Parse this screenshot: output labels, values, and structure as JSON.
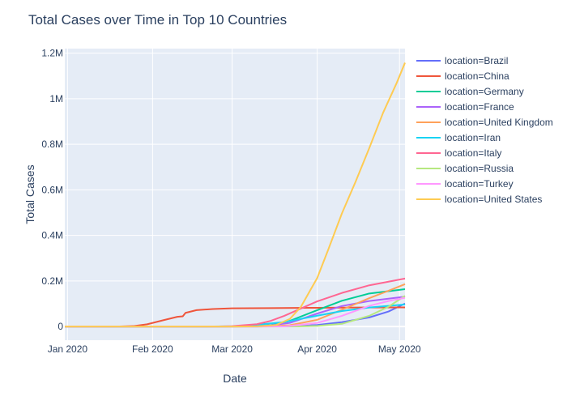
{
  "chart_data": {
    "type": "line",
    "title": "Total Cases over Time in Top 10 Countries",
    "xlabel": "Date",
    "ylabel": "Total Cases",
    "x_range": [
      "2019-12-31",
      "2020-05-03"
    ],
    "ylim": [
      -60000,
      1220000
    ],
    "x_ticks": [
      {
        "date": "2020-01-01",
        "label": "Jan 2020"
      },
      {
        "date": "2020-02-01",
        "label": "Feb 2020"
      },
      {
        "date": "2020-03-01",
        "label": "Mar 2020"
      },
      {
        "date": "2020-04-01",
        "label": "Apr 2020"
      },
      {
        "date": "2020-05-01",
        "label": "May 2020"
      }
    ],
    "y_ticks": [
      {
        "value": 0,
        "label": "0"
      },
      {
        "value": 200000,
        "label": "0.2M"
      },
      {
        "value": 400000,
        "label": "0.4M"
      },
      {
        "value": 600000,
        "label": "0.6M"
      },
      {
        "value": 800000,
        "label": "0.8M"
      },
      {
        "value": 1000000,
        "label": "1M"
      },
      {
        "value": 1200000,
        "label": "1.2M"
      }
    ],
    "grid": true,
    "legend_position": "right",
    "plot_background": "#e5ecf6",
    "series": [
      {
        "name": "location=Brazil",
        "color": "#636efa",
        "points": [
          [
            "2019-12-31",
            0
          ],
          [
            "2020-03-10",
            0
          ],
          [
            "2020-03-25",
            2500
          ],
          [
            "2020-04-01",
            6800
          ],
          [
            "2020-04-10",
            19000
          ],
          [
            "2020-04-20",
            40000
          ],
          [
            "2020-04-27",
            66000
          ],
          [
            "2020-05-03",
            101000
          ]
        ]
      },
      {
        "name": "location=China",
        "color": "#ef553b",
        "points": [
          [
            "2019-12-31",
            0
          ],
          [
            "2020-01-20",
            300
          ],
          [
            "2020-01-25",
            2000
          ],
          [
            "2020-01-30",
            9700
          ],
          [
            "2020-02-05",
            28000
          ],
          [
            "2020-02-10",
            42600
          ],
          [
            "2020-02-12",
            45000
          ],
          [
            "2020-02-13",
            60000
          ],
          [
            "2020-02-17",
            72000
          ],
          [
            "2020-02-23",
            77000
          ],
          [
            "2020-03-01",
            80000
          ],
          [
            "2020-03-15",
            81000
          ],
          [
            "2020-04-01",
            82300
          ],
          [
            "2020-04-17",
            83700
          ],
          [
            "2020-05-03",
            84000
          ]
        ]
      },
      {
        "name": "location=Germany",
        "color": "#00cc96",
        "points": [
          [
            "2019-12-31",
            0
          ],
          [
            "2020-02-25",
            20
          ],
          [
            "2020-03-05",
            500
          ],
          [
            "2020-03-15",
            5800
          ],
          [
            "2020-03-22",
            24900
          ],
          [
            "2020-04-01",
            71800
          ],
          [
            "2020-04-10",
            113000
          ],
          [
            "2020-04-20",
            145000
          ],
          [
            "2020-05-03",
            164000
          ]
        ]
      },
      {
        "name": "location=France",
        "color": "#ab63fa",
        "points": [
          [
            "2019-12-31",
            0
          ],
          [
            "2020-02-25",
            20
          ],
          [
            "2020-03-08",
            1100
          ],
          [
            "2020-03-15",
            5400
          ],
          [
            "2020-03-22",
            16000
          ],
          [
            "2020-04-01",
            56900
          ],
          [
            "2020-04-10",
            90000
          ],
          [
            "2020-04-20",
            112000
          ],
          [
            "2020-05-03",
            131000
          ]
        ]
      },
      {
        "name": "location=United Kingdom",
        "color": "#ffa15a",
        "points": [
          [
            "2019-12-31",
            0
          ],
          [
            "2020-03-01",
            36
          ],
          [
            "2020-03-10",
            380
          ],
          [
            "2020-03-15",
            1400
          ],
          [
            "2020-03-22",
            5700
          ],
          [
            "2020-04-01",
            29500
          ],
          [
            "2020-04-10",
            73800
          ],
          [
            "2020-04-20",
            124700
          ],
          [
            "2020-04-27",
            157000
          ],
          [
            "2020-05-03",
            186000
          ]
        ]
      },
      {
        "name": "location=Iran",
        "color": "#19d3f3",
        "points": [
          [
            "2019-12-31",
            0
          ],
          [
            "2020-02-20",
            5
          ],
          [
            "2020-03-01",
            1500
          ],
          [
            "2020-03-10",
            8000
          ],
          [
            "2020-03-20",
            19600
          ],
          [
            "2020-04-01",
            47600
          ],
          [
            "2020-04-10",
            68000
          ],
          [
            "2020-04-20",
            83500
          ],
          [
            "2020-05-03",
            97000
          ]
        ]
      },
      {
        "name": "location=Italy",
        "color": "#ff6692",
        "points": [
          [
            "2019-12-31",
            0
          ],
          [
            "2020-02-20",
            3
          ],
          [
            "2020-02-25",
            300
          ],
          [
            "2020-03-01",
            1700
          ],
          [
            "2020-03-10",
            10100
          ],
          [
            "2020-03-15",
            24700
          ],
          [
            "2020-03-20",
            47000
          ],
          [
            "2020-04-01",
            110500
          ],
          [
            "2020-04-10",
            147500
          ],
          [
            "2020-04-20",
            181000
          ],
          [
            "2020-05-03",
            210700
          ]
        ]
      },
      {
        "name": "location=Russia",
        "color": "#b6e880",
        "points": [
          [
            "2019-12-31",
            0
          ],
          [
            "2020-03-15",
            60
          ],
          [
            "2020-03-25",
            660
          ],
          [
            "2020-04-01",
            2800
          ],
          [
            "2020-04-10",
            11900
          ],
          [
            "2020-04-20",
            47100
          ],
          [
            "2020-04-27",
            87100
          ],
          [
            "2020-05-03",
            134700
          ]
        ]
      },
      {
        "name": "location=Turkey",
        "color": "#ff97ff",
        "points": [
          [
            "2019-12-31",
            0
          ],
          [
            "2020-03-11",
            1
          ],
          [
            "2020-03-20",
            360
          ],
          [
            "2020-04-01",
            15700
          ],
          [
            "2020-04-10",
            47000
          ],
          [
            "2020-04-20",
            90900
          ],
          [
            "2020-04-27",
            112000
          ],
          [
            "2020-05-03",
            126000
          ]
        ]
      },
      {
        "name": "location=United States",
        "color": "#fecb52",
        "points": [
          [
            "2019-12-31",
            0
          ],
          [
            "2020-03-01",
            75
          ],
          [
            "2020-03-10",
            1000
          ],
          [
            "2020-03-17",
            6400
          ],
          [
            "2020-03-22",
            33300
          ],
          [
            "2020-03-26",
            85400
          ],
          [
            "2020-04-01",
            213000
          ],
          [
            "2020-04-05",
            337000
          ],
          [
            "2020-04-10",
            496500
          ],
          [
            "2020-04-15",
            636000
          ],
          [
            "2020-04-20",
            784000
          ],
          [
            "2020-04-25",
            938000
          ],
          [
            "2020-04-30",
            1070000
          ],
          [
            "2020-05-03",
            1158000
          ]
        ]
      }
    ]
  }
}
